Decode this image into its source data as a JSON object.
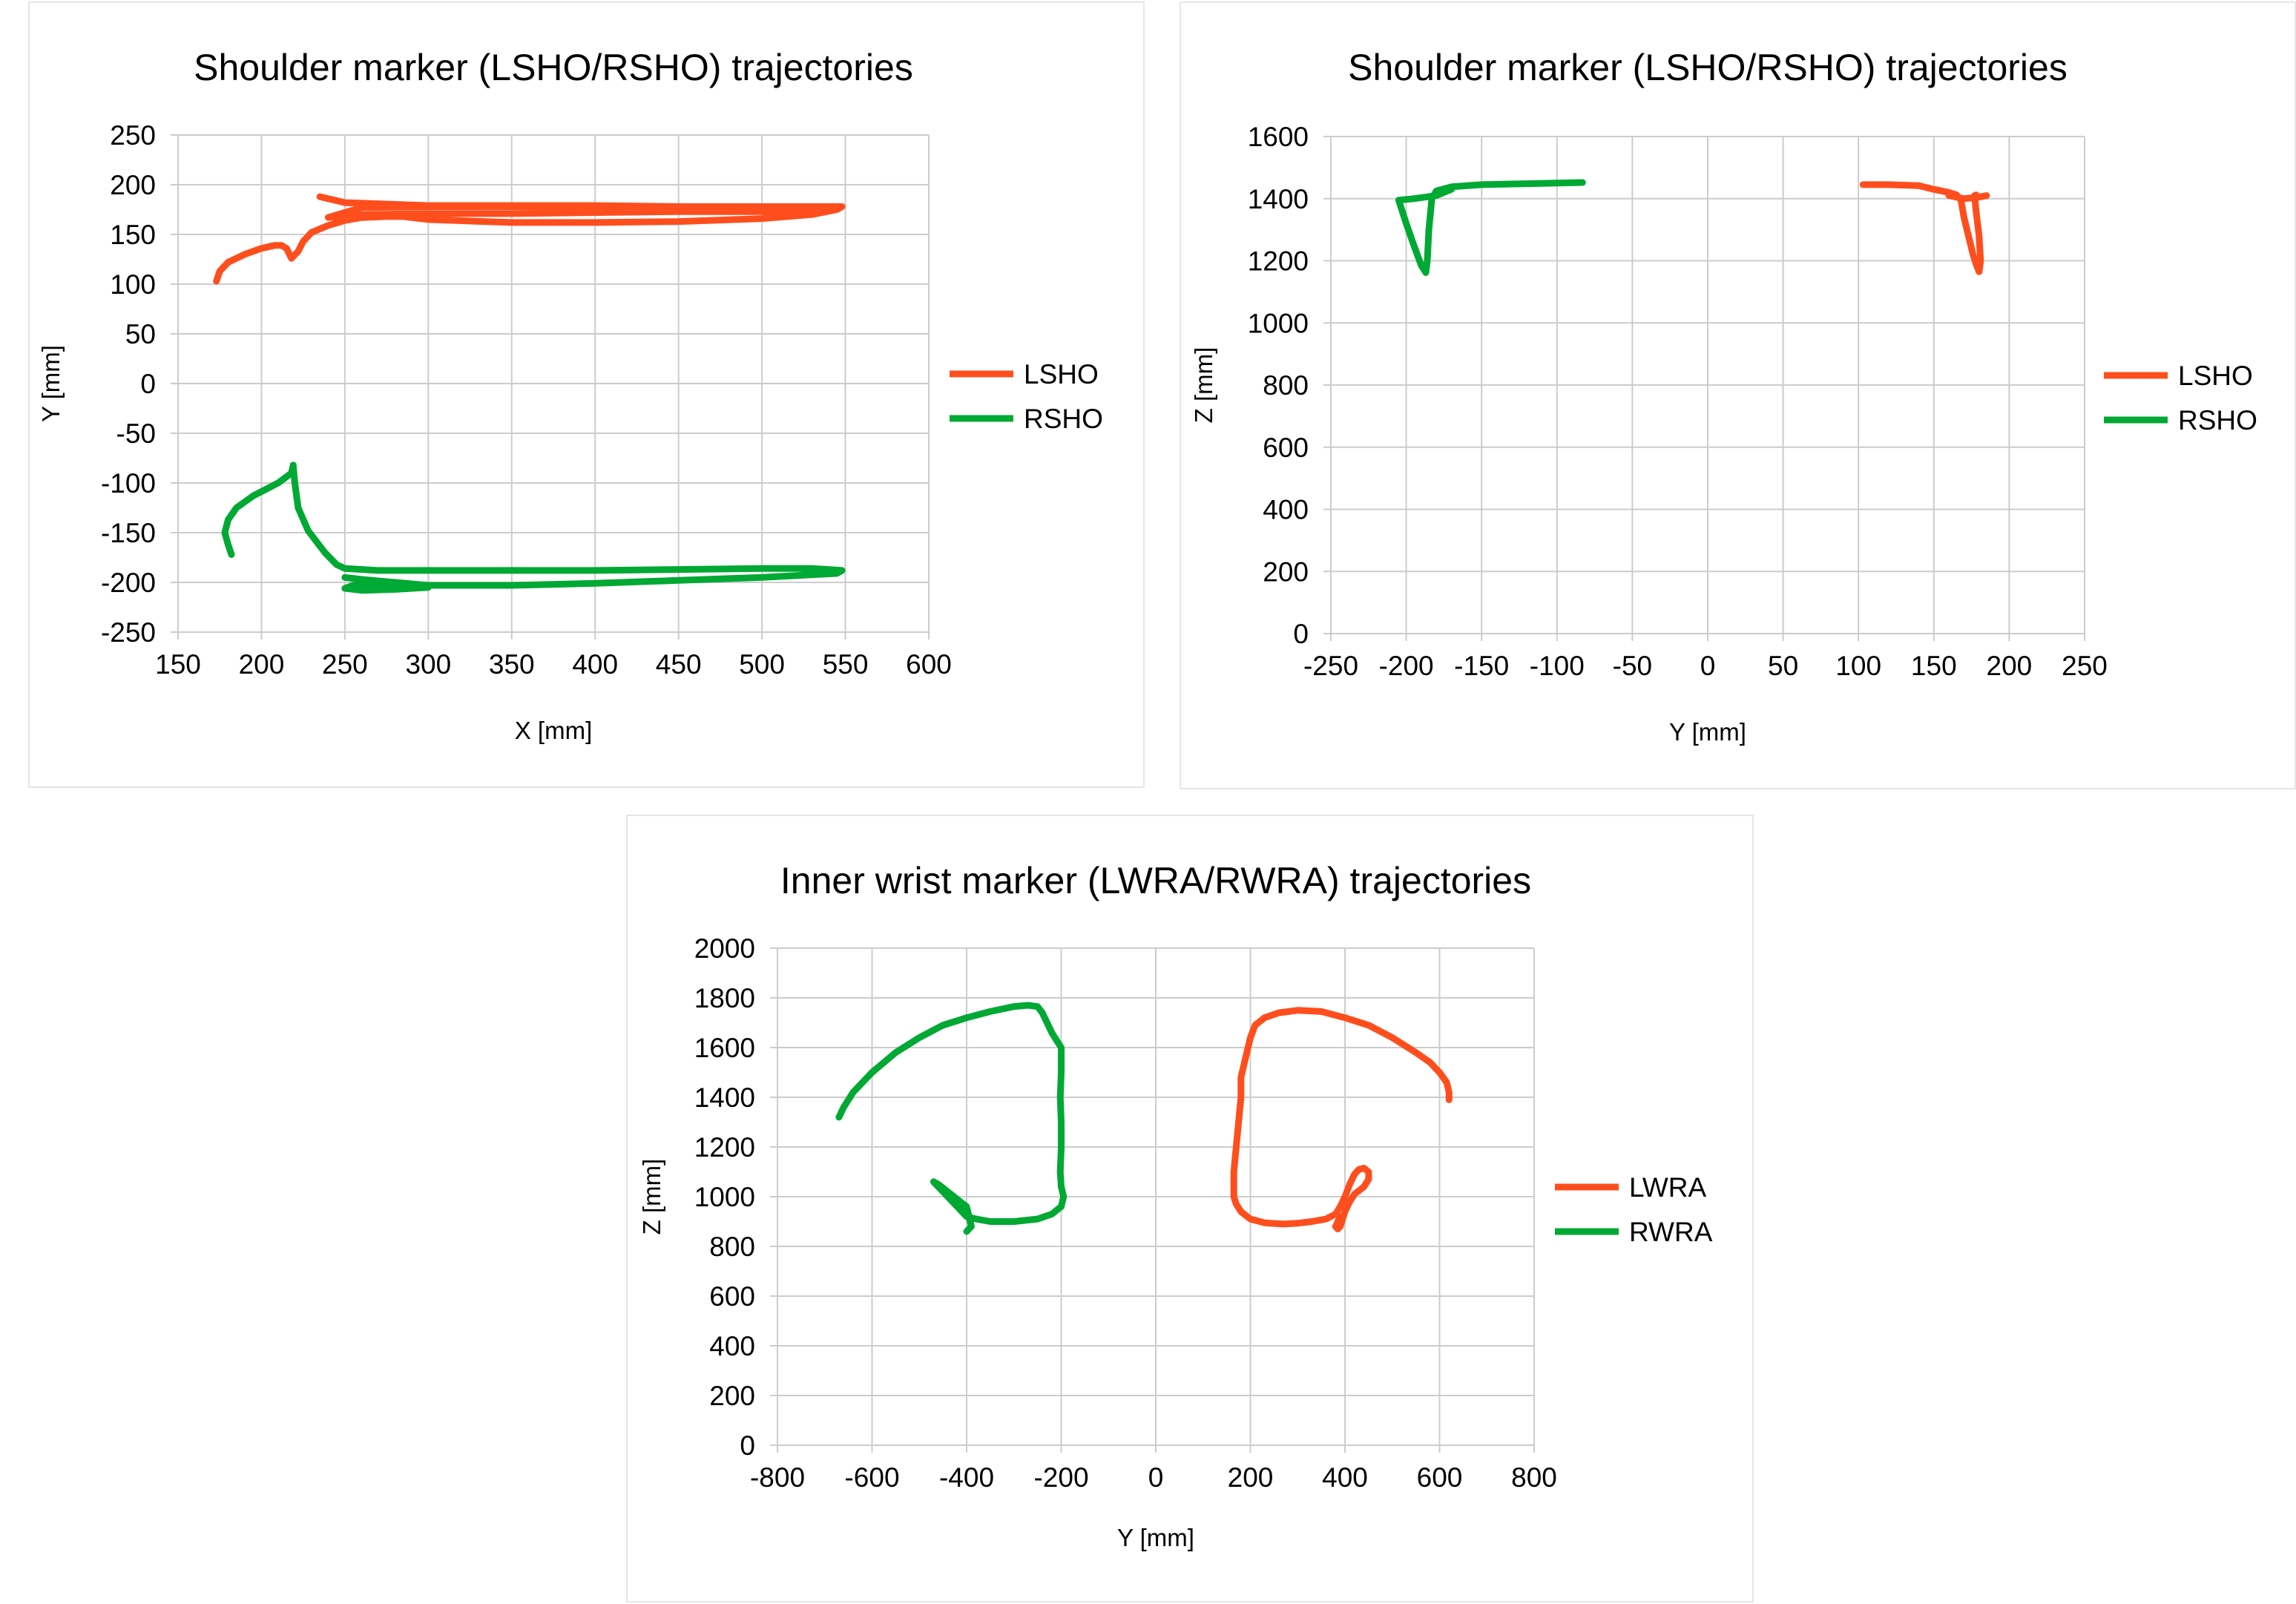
{
  "chart_data": [
    {
      "type": "line",
      "title": "Shoulder marker (LSHO/RSHO) trajectories",
      "xlabel": "X [mm]",
      "ylabel": "Y [mm]",
      "xlim": [
        150,
        600
      ],
      "ylim": [
        -250,
        250
      ],
      "xticks": [
        "150",
        "200",
        "250",
        "300",
        "350",
        "400",
        "450",
        "500",
        "550",
        "600"
      ],
      "yticks": [
        "-250",
        "-200",
        "-150",
        "-100",
        "-50",
        "0",
        "50",
        "100",
        "150",
        "200",
        "250"
      ],
      "grid": true,
      "legend": "right",
      "series": [
        {
          "name": "LSHO",
          "color": "#ff4e1d",
          "x": [
            173,
            175,
            180,
            190,
            200,
            208,
            212,
            215,
            218,
            222,
            225,
            230,
            240,
            250,
            260,
            275,
            285,
            300,
            350,
            400,
            450,
            500,
            530,
            545,
            548,
            540,
            500,
            450,
            400,
            350,
            300,
            260,
            250,
            240,
            260,
            300,
            350,
            400,
            450,
            500,
            540,
            500,
            400,
            300,
            250,
            235
          ],
          "y": [
            103,
            113,
            122,
            130,
            136,
            139,
            139,
            136,
            126,
            133,
            143,
            152,
            159,
            164,
            167,
            168,
            168,
            165,
            162,
            162,
            163,
            166,
            170,
            175,
            178,
            178,
            178,
            178,
            178,
            178,
            178,
            177,
            172,
            167,
            170,
            171,
            171,
            172,
            173,
            173,
            174,
            177,
            179,
            179,
            182,
            188
          ]
        },
        {
          "name": "RSHO",
          "color": "#00a933",
          "x": [
            182,
            180,
            178,
            180,
            185,
            195,
            210,
            218,
            219,
            220,
            222,
            228,
            238,
            245,
            250,
            270,
            300,
            350,
            400,
            450,
            500,
            530,
            548,
            545,
            500,
            450,
            400,
            350,
            300,
            270,
            255,
            250,
            260,
            280,
            300,
            300,
            280,
            260,
            250
          ],
          "y": [
            -172,
            -162,
            -150,
            -137,
            -125,
            -113,
            -100,
            -90,
            -82,
            -100,
            -125,
            -148,
            -170,
            -182,
            -186,
            -188,
            -188,
            -188,
            -188,
            -187,
            -186,
            -186,
            -188,
            -191,
            -195,
            -198,
            -201,
            -203,
            -203,
            -202,
            -203,
            -206,
            -208,
            -207,
            -205,
            -203,
            -200,
            -197,
            -195
          ]
        }
      ]
    },
    {
      "type": "line",
      "title": "Shoulder marker (LSHO/RSHO) trajectories",
      "xlabel": "Y [mm]",
      "ylabel": "Z [mm]",
      "xlim": [
        -250,
        250
      ],
      "ylim": [
        0,
        1600
      ],
      "xticks": [
        "-250",
        "-200",
        "-150",
        "-100",
        "-50",
        "0",
        "50",
        "100",
        "150",
        "200",
        "250"
      ],
      "yticks": [
        "0",
        "200",
        "400",
        "600",
        "800",
        "1000",
        "1200",
        "1400",
        "1600"
      ],
      "grid": true,
      "legend": "right",
      "series": [
        {
          "name": "LSHO",
          "color": "#ff4e1d",
          "x": [
            103,
            120,
            140,
            150,
            160,
            165,
            168,
            170,
            173,
            176,
            178,
            180,
            181,
            180,
            178,
            177,
            178,
            179,
            183,
            185,
            180,
            170,
            160
          ],
          "y": [
            1445,
            1445,
            1442,
            1430,
            1420,
            1412,
            1395,
            1340,
            1280,
            1220,
            1190,
            1165,
            1200,
            1280,
            1360,
            1410,
            1412,
            1405,
            1408,
            1410,
            1405,
            1400,
            1410
          ]
        },
        {
          "name": "RSHO",
          "color": "#00a933",
          "x": [
            -83,
            -100,
            -120,
            -150,
            -170,
            -180,
            -183,
            -185,
            -186,
            -187,
            -190,
            -195,
            -200,
            -205,
            -195,
            -180,
            -175,
            -170
          ],
          "y": [
            1452,
            1450,
            1448,
            1445,
            1438,
            1425,
            1400,
            1300,
            1200,
            1162,
            1185,
            1250,
            1320,
            1395,
            1400,
            1410,
            1420,
            1430
          ]
        }
      ]
    },
    {
      "type": "line",
      "title": "Inner wrist marker (LWRA/RWRA) trajectories",
      "xlabel": "Y [mm]",
      "ylabel": "Z [mm]",
      "xlim": [
        -800,
        800
      ],
      "ylim": [
        0,
        2000
      ],
      "xticks": [
        "-800",
        "-600",
        "-400",
        "-200",
        "0",
        "200",
        "400",
        "600",
        "800"
      ],
      "yticks": [
        "0",
        "200",
        "400",
        "600",
        "800",
        "1000",
        "1200",
        "1400",
        "1600",
        "1800",
        "2000"
      ],
      "grid": true,
      "legend": "right",
      "series": [
        {
          "name": "LWRA",
          "color": "#ff4e1d",
          "x": [
            620,
            620,
            615,
            600,
            580,
            550,
            500,
            450,
            400,
            350,
            300,
            260,
            230,
            210,
            200,
            190,
            180,
            180,
            175,
            170,
            165,
            165,
            170,
            180,
            200,
            230,
            270,
            300,
            330,
            360,
            380,
            390,
            400,
            410,
            420,
            430,
            440,
            450,
            450,
            440,
            420,
            410,
            400,
            395,
            390,
            385,
            380,
            385,
            390
          ],
          "y": [
            1390,
            1420,
            1460,
            1500,
            1540,
            1580,
            1640,
            1690,
            1720,
            1745,
            1750,
            1740,
            1720,
            1690,
            1640,
            1560,
            1480,
            1400,
            1300,
            1200,
            1100,
            1000,
            970,
            940,
            910,
            895,
            890,
            893,
            900,
            910,
            930,
            960,
            1000,
            1050,
            1090,
            1110,
            1115,
            1100,
            1070,
            1040,
            1010,
            980,
            940,
            910,
            880,
            870,
            880,
            900,
            920
          ]
        },
        {
          "name": "RWRA",
          "color": "#00a933",
          "x": [
            -670,
            -660,
            -640,
            -600,
            -550,
            -500,
            -450,
            -400,
            -350,
            -300,
            -270,
            -250,
            -240,
            -230,
            -220,
            -210,
            -200,
            -200,
            -202,
            -200,
            -200,
            -202,
            -200,
            -195,
            -200,
            -220,
            -250,
            -300,
            -350,
            -380,
            -400,
            -410,
            -420,
            -440,
            -460,
            -470,
            -460,
            -440,
            -420,
            -400,
            -390,
            -400
          ],
          "y": [
            1320,
            1360,
            1420,
            1500,
            1580,
            1640,
            1690,
            1720,
            1745,
            1765,
            1770,
            1765,
            1740,
            1700,
            1660,
            1630,
            1600,
            1500,
            1400,
            1300,
            1200,
            1100,
            1040,
            1000,
            960,
            930,
            910,
            900,
            900,
            910,
            920,
            940,
            960,
            1000,
            1040,
            1060,
            1050,
            1020,
            990,
            960,
            880,
            860
          ]
        }
      ]
    }
  ]
}
